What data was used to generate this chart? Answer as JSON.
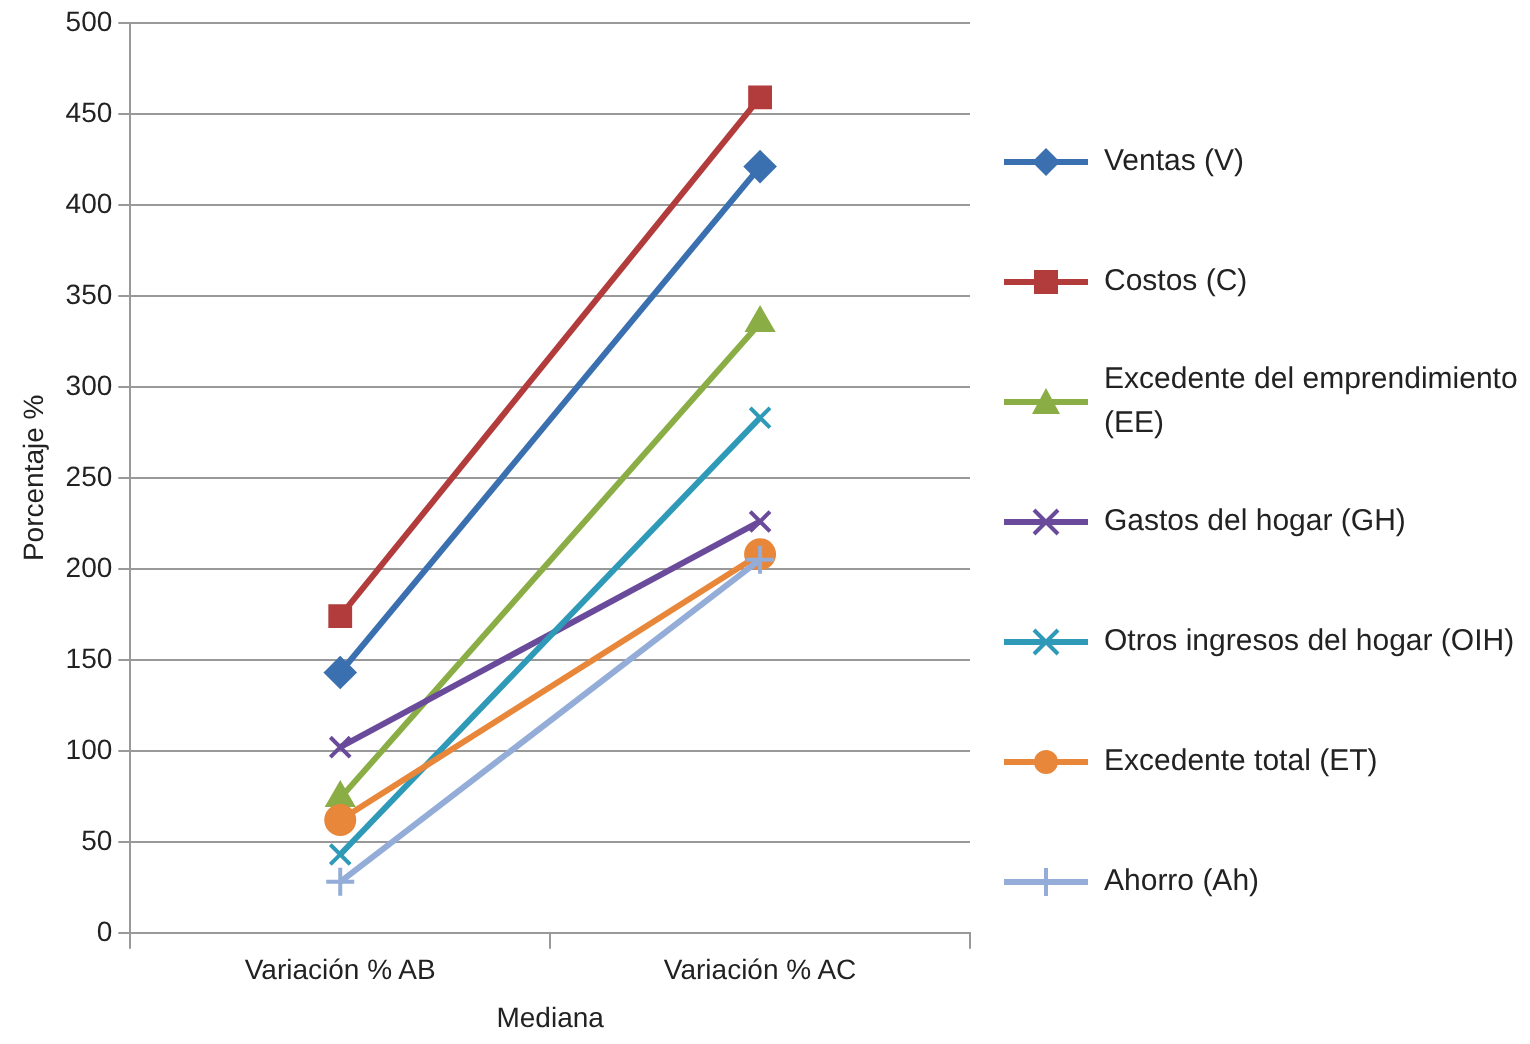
{
  "chart_data": {
    "type": "line",
    "xlabel": "Mediana",
    "ylabel": "Porcentaje %",
    "categories": [
      "Variación % AB",
      "Variación % AC"
    ],
    "series": [
      {
        "name": "Ventas (V)",
        "color": "#3a6fb0",
        "marker": "diamond",
        "values": [
          143,
          421
        ]
      },
      {
        "name": "Costos (C)",
        "color": "#b23b3b",
        "marker": "square",
        "values": [
          174,
          459
        ]
      },
      {
        "name": "Excedente del emprendimiento (EE)",
        "color": "#8aae45",
        "marker": "triangle",
        "values": [
          74,
          335
        ]
      },
      {
        "name": "Gastos del hogar (GH)",
        "color": "#6a4a9a",
        "marker": "cross",
        "values": [
          102,
          226
        ]
      },
      {
        "name": "Otros ingresos del hogar (OIH)",
        "color": "#2e9ab8",
        "marker": "cross",
        "values": [
          43,
          283
        ]
      },
      {
        "name": "Excedente total (ET)",
        "color": "#e8873a",
        "marker": "circle",
        "values": [
          62,
          208
        ]
      },
      {
        "name": "Ahorro (Ah)",
        "color": "#93acd8",
        "marker": "plus",
        "values": [
          28,
          205
        ]
      }
    ],
    "ylim": [
      0,
      500
    ],
    "yticks": [
      0,
      50,
      100,
      150,
      200,
      250,
      300,
      350,
      400,
      450,
      500
    ],
    "grid": "y",
    "legend": "right",
    "line_style": "solid"
  }
}
